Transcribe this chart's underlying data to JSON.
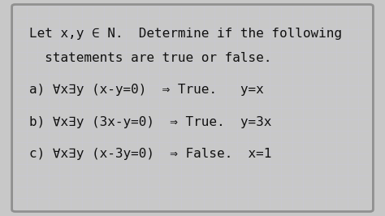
{
  "bg_color": "#c8c8c8",
  "board_color": "#f0f0eb",
  "grid_color": "#c8c8d8",
  "border_color": "#909090",
  "text_color": "#111111",
  "title_line1": "Let x,y ∈ N.  Determine if the following",
  "title_line2": "  statements are true or false.",
  "lines": [
    {
      "label": "a)",
      "expr": "∀x∃y (x-y=0)  ⇒ True.   y=x"
    },
    {
      "label": "b)",
      "expr": "∀x∃y (3x-y=0)  ⇒ True.  y=3x"
    },
    {
      "label": "c)",
      "expr": "∀x∃y (x-3y=0)  ⇒ False.  x=1"
    }
  ],
  "font_size_title": 11.5,
  "font_size_body": 11.5,
  "figsize": [
    4.74,
    2.66
  ],
  "dpi": 100
}
